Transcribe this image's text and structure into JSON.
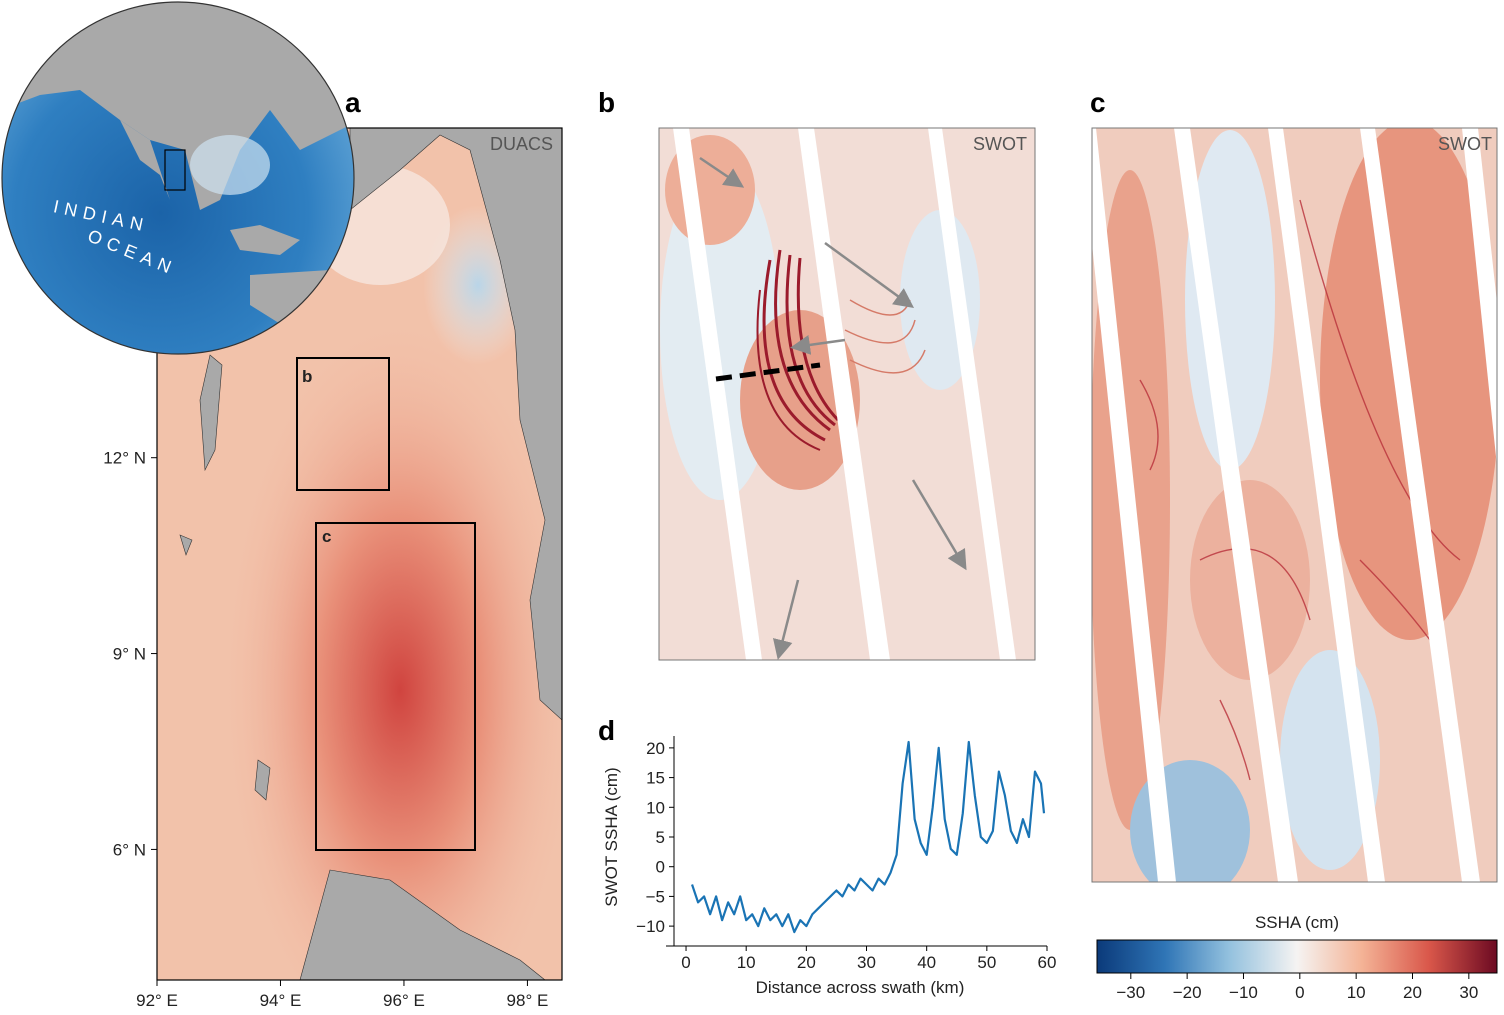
{
  "globe": {
    "labels": [
      "INDIAN",
      "OCEAN"
    ]
  },
  "panel_a": {
    "label": "a",
    "source": "DUACS",
    "box_labels": [
      "b",
      "c"
    ],
    "xlim": [
      92,
      98.56
    ],
    "ylim": [
      4.0,
      17.05
    ],
    "xticks": [
      {
        "value": 92,
        "label": "92° E"
      },
      {
        "value": 94,
        "label": "94° E"
      },
      {
        "value": 96,
        "label": "96° E"
      },
      {
        "value": 98,
        "label": "98° E"
      }
    ],
    "yticks": [
      {
        "value": 12,
        "label": "12° N"
      },
      {
        "value": 9,
        "label": "9° N"
      },
      {
        "value": 6,
        "label": "6° N"
      }
    ]
  },
  "panel_b": {
    "label": "b",
    "source": "SWOT"
  },
  "panel_c": {
    "label": "c",
    "source": "SWOT"
  },
  "colorbar": {
    "title": "SSHA (cm)",
    "lim": [
      -36,
      35
    ],
    "ticks": [
      {
        "value": -30,
        "label": "−30"
      },
      {
        "value": -20,
        "label": "−20"
      },
      {
        "value": -10,
        "label": "−10"
      },
      0,
      10,
      20,
      30
    ]
  },
  "chart_data": {
    "type": "line",
    "label": "d",
    "x_label": "Distance across swath (km)",
    "y_label": "SWOT SSHA (cm)",
    "color": "#1a74b5",
    "x": [
      1,
      2,
      3,
      4,
      5,
      6,
      7,
      8,
      9,
      10,
      11,
      12,
      13,
      14,
      15,
      16,
      17,
      18,
      19,
      20,
      21,
      22,
      23,
      24,
      25,
      26,
      27,
      28,
      29,
      30,
      31,
      32,
      33,
      34,
      35,
      36,
      37,
      38,
      39,
      40,
      41,
      42,
      43,
      44,
      45,
      46,
      47,
      48,
      49,
      50,
      51,
      52,
      53,
      54,
      55,
      56,
      57,
      58,
      59,
      59.5
    ],
    "values": [
      -3,
      -6,
      -5,
      -8,
      -5,
      -9,
      -6,
      -8,
      -5,
      -9,
      -8,
      -10,
      -7,
      -9,
      -8,
      -10,
      -8,
      -11,
      -9,
      -10,
      -8,
      -7,
      -6,
      -5,
      -4,
      -5,
      -3,
      -4,
      -2,
      -3,
      -4,
      -2,
      -3,
      -1,
      2,
      14,
      21,
      8,
      4,
      2,
      10,
      20,
      8,
      3,
      2,
      9,
      21,
      12,
      5,
      4,
      6,
      16,
      12,
      6,
      4,
      8,
      5,
      16,
      14,
      9
    ],
    "xlim": [
      -2,
      60
    ],
    "ylim": [
      -12,
      22
    ],
    "xticks": [
      0,
      10,
      20,
      30,
      40,
      50,
      60
    ],
    "yticks": [
      {
        "value": -10,
        "label": "−10"
      },
      {
        "value": -5,
        "label": "−5"
      },
      0,
      5,
      10,
      15,
      20
    ]
  }
}
